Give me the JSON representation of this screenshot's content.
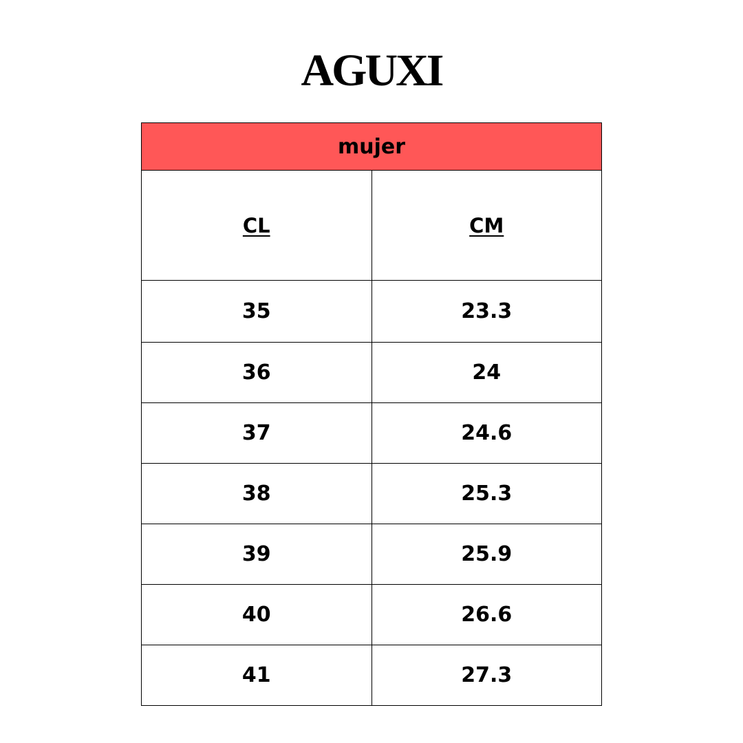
{
  "brand": {
    "logo_text": "AGUXI"
  },
  "table": {
    "title": "mujer",
    "header_color": "#FF5757",
    "columns": [
      "CL",
      "CM"
    ],
    "rows": [
      [
        "35",
        "23.3"
      ],
      [
        "36",
        "24"
      ],
      [
        "37",
        "24.6"
      ],
      [
        "38",
        "25.3"
      ],
      [
        "39",
        "25.9"
      ],
      [
        "40",
        "26.6"
      ],
      [
        "41",
        "27.3"
      ]
    ]
  }
}
